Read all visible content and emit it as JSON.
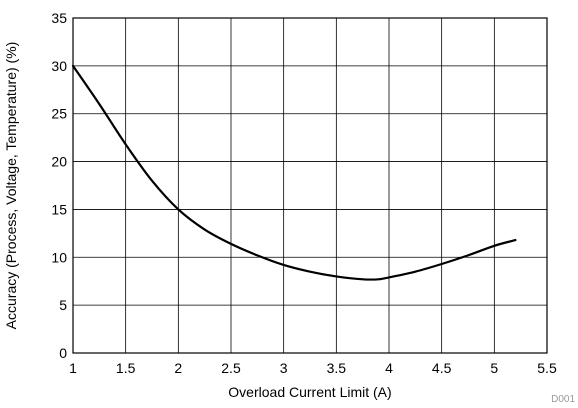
{
  "chart_data": {
    "type": "line",
    "title": "",
    "xlabel": "Overload Current Limit (A)",
    "ylabel": "Accuracy (Process, Voltage, Temperature) (%)",
    "xlim": [
      1,
      5.5
    ],
    "ylim": [
      0,
      35
    ],
    "x_ticks": [
      1,
      1.5,
      2,
      2.5,
      3,
      3.5,
      4,
      4.5,
      5,
      5.5
    ],
    "x_tick_labels": [
      "1",
      "1.5",
      "2",
      "2.5",
      "3",
      "3.5",
      "4",
      "4.5",
      "5",
      "5.5"
    ],
    "y_ticks": [
      0,
      5,
      10,
      15,
      20,
      25,
      30,
      35
    ],
    "y_tick_labels": [
      "0",
      "5",
      "10",
      "15",
      "20",
      "25",
      "30",
      "35"
    ],
    "grid": true,
    "legend": "none",
    "series": [
      {
        "color": "#000000",
        "x": [
          1.0,
          1.25,
          1.5,
          1.75,
          2.0,
          2.25,
          2.5,
          2.75,
          3.0,
          3.25,
          3.5,
          3.75,
          3.9,
          4.0,
          4.25,
          4.5,
          4.75,
          5.0,
          5.2
        ],
        "y": [
          30.0,
          26.0,
          21.8,
          18.0,
          15.0,
          12.9,
          11.4,
          10.2,
          9.2,
          8.5,
          8.0,
          7.7,
          7.7,
          7.9,
          8.5,
          9.3,
          10.2,
          11.2,
          11.8
        ]
      }
    ],
    "figure_id": "D001"
  }
}
